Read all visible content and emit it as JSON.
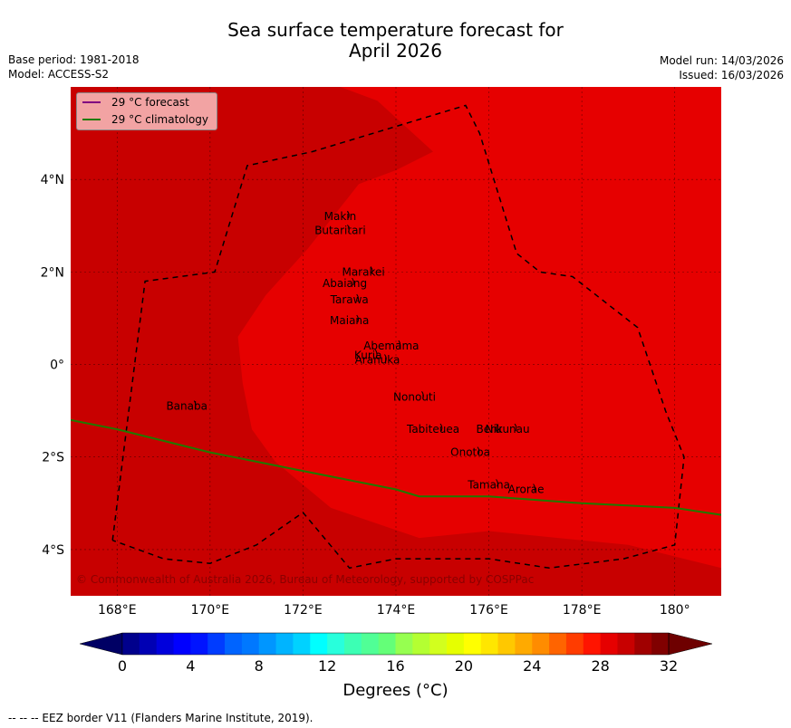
{
  "title_line1": "Sea surface temperature forecast for",
  "title_line2": "April 2026",
  "base_period": "Base period: 1981-2018",
  "model": "Model: ACCESS-S2",
  "model_run": "Model run: 14/03/2026",
  "issued": "Issued: 16/03/2026",
  "legend": {
    "forecast_label": "29 °C  forecast",
    "forecast_color": "#800080",
    "climatology_label": "29 °C  climatology",
    "climatology_color": "#1f7a00"
  },
  "map": {
    "lon_range": [
      167,
      181
    ],
    "lat_range": [
      -5,
      6
    ],
    "lon_ticks": [
      "168°E",
      "170°E",
      "172°E",
      "174°E",
      "176°E",
      "178°E",
      "180°"
    ],
    "lat_ticks": [
      "4°N",
      "2°N",
      "0°",
      "2°S",
      "4°S"
    ],
    "colors": {
      "outer": "#c80000",
      "inner": "#e60000"
    },
    "copyright": "© Commonwealth of Australia 2026, Bureau of Meteorology, supported by COSPPac",
    "islands": [
      {
        "name": "Makin",
        "lon": 172.8,
        "lat": 3.2
      },
      {
        "name": "Butaritari",
        "lon": 172.8,
        "lat": 2.9
      },
      {
        "name": "Marakei",
        "lon": 173.3,
        "lat": 2.0
      },
      {
        "name": "Abaiang",
        "lon": 172.9,
        "lat": 1.75
      },
      {
        "name": "Tarawa",
        "lon": 173.0,
        "lat": 1.4
      },
      {
        "name": "Maiana",
        "lon": 173.0,
        "lat": 0.95
      },
      {
        "name": "Abemama",
        "lon": 173.9,
        "lat": 0.4
      },
      {
        "name": "Kuria",
        "lon": 173.4,
        "lat": 0.2
      },
      {
        "name": "Aranuka",
        "lon": 173.6,
        "lat": 0.1
      },
      {
        "name": "Nonouti",
        "lon": 174.4,
        "lat": -0.7
      },
      {
        "name": "Banaba",
        "lon": 169.5,
        "lat": -0.9
      },
      {
        "name": "Beru",
        "lon": 176.0,
        "lat": -1.4
      },
      {
        "name": "Nikunau",
        "lon": 176.4,
        "lat": -1.4
      },
      {
        "name": "Tabiteuea",
        "lon": 174.8,
        "lat": -1.4
      },
      {
        "name": "Onotoa",
        "lon": 175.6,
        "lat": -1.9
      },
      {
        "name": "Tamana",
        "lon": 176.0,
        "lat": -2.6
      },
      {
        "name": "Arorae",
        "lon": 176.8,
        "lat": -2.7
      }
    ],
    "eez_border": [
      [
        167.9,
        -3.8
      ],
      [
        168.6,
        1.8
      ],
      [
        170.1,
        2.0
      ],
      [
        170.8,
        4.3
      ],
      [
        172.2,
        4.6
      ],
      [
        175.5,
        5.6
      ],
      [
        175.8,
        5.0
      ],
      [
        176.6,
        2.4
      ],
      [
        177.1,
        2.0
      ],
      [
        177.8,
        1.9
      ],
      [
        179.2,
        0.8
      ],
      [
        179.8,
        -1.0
      ],
      [
        180.2,
        -2.0
      ],
      [
        180.0,
        -3.9
      ],
      [
        178.9,
        -4.2
      ],
      [
        177.3,
        -4.4
      ],
      [
        176.0,
        -4.2
      ],
      [
        174.0,
        -4.2
      ],
      [
        173.0,
        -4.4
      ],
      [
        172.0,
        -3.2
      ],
      [
        171.0,
        -3.9
      ],
      [
        170.0,
        -4.3
      ],
      [
        169.0,
        -4.2
      ],
      [
        167.9,
        -3.8
      ]
    ],
    "climatology_line": [
      [
        167,
        -1.2
      ],
      [
        168,
        -1.4
      ],
      [
        170,
        -1.9
      ],
      [
        172,
        -2.3
      ],
      [
        174,
        -2.7
      ],
      [
        174.5,
        -2.85
      ],
      [
        176,
        -2.85
      ],
      [
        178,
        -3.0
      ],
      [
        180,
        -3.1
      ],
      [
        181,
        -3.25
      ]
    ],
    "inner_region": [
      [
        172.8,
        6.0
      ],
      [
        175.2,
        6.0
      ],
      [
        181,
        6.0
      ],
      [
        181,
        -4.4
      ],
      [
        179.0,
        -3.9
      ],
      [
        176,
        -3.6
      ],
      [
        174.5,
        -3.75
      ],
      [
        172.6,
        -3.1
      ],
      [
        171.4,
        -2.1
      ],
      [
        170.9,
        -1.4
      ],
      [
        170.7,
        -0.4
      ],
      [
        170.6,
        0.6
      ],
      [
        171.2,
        1.5
      ],
      [
        172.1,
        2.5
      ],
      [
        173.2,
        3.9
      ],
      [
        174,
        4.2
      ],
      [
        174.8,
        4.6
      ],
      [
        173.6,
        5.7
      ]
    ]
  },
  "colorbar": {
    "tick_labels": [
      "0",
      "4",
      "8",
      "12",
      "16",
      "20",
      "24",
      "28",
      "32"
    ],
    "title": "Degrees (°C)",
    "colors": [
      "#00008c",
      "#0000b4",
      "#0000dc",
      "#0000ff",
      "#0014ff",
      "#003cff",
      "#0064ff",
      "#0078ff",
      "#0096ff",
      "#00b4ff",
      "#00d2ff",
      "#00ffff",
      "#28ffdc",
      "#3cffb4",
      "#50ff96",
      "#64ff78",
      "#96ff50",
      "#b4ff32",
      "#d2ff1e",
      "#e6ff00",
      "#ffff00",
      "#ffe600",
      "#ffc800",
      "#ffaa00",
      "#ff8c00",
      "#ff6400",
      "#ff3c00",
      "#ff1400",
      "#e60000",
      "#c80000",
      "#a00000",
      "#800000"
    ]
  },
  "footnote": "--  --  -- EEZ border V11 (Flanders Marine Institute, 2019)."
}
